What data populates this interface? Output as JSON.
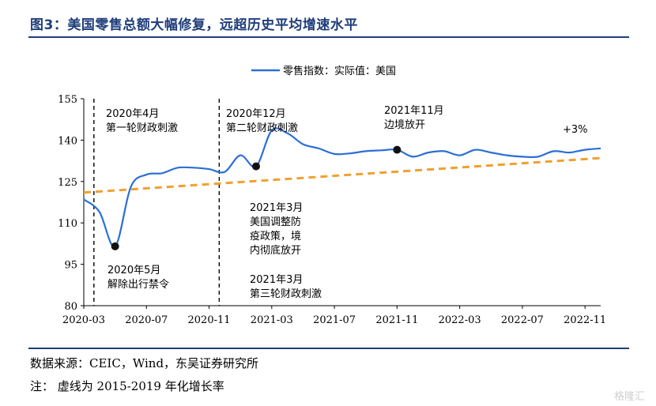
{
  "header": {
    "title": "图3：美国零售总额大幅修复，远超历史平均增速水平"
  },
  "footer": {
    "source": "数据来源：CEIC，Wind，东吴证券研究所",
    "note": "注：  虚线为 2015-2019 年化增长率"
  },
  "watermark": "格隆汇",
  "colors": {
    "line": "#2b6fd6",
    "trend": "#f0a030",
    "title": "#1f3d7a"
  },
  "chart_data": {
    "type": "line",
    "title": "",
    "xlabel": "",
    "ylabel": "",
    "ylim": [
      80,
      155
    ],
    "yticks": [
      80,
      95,
      110,
      125,
      140,
      155
    ],
    "xlim": [
      "2020-03",
      "2022-12"
    ],
    "xticks": [
      "2020-03",
      "2020-07",
      "2020-11",
      "2021-03",
      "2021-07",
      "2021-11",
      "2022-03",
      "2022-07",
      "2022-11"
    ],
    "legend": "top-center",
    "grid": false,
    "series": [
      {
        "name": "零售指数：实际值：美国",
        "x": [
          "2020-03",
          "2020-04",
          "2020-05",
          "2020-06",
          "2020-07",
          "2020-08",
          "2020-09",
          "2020-10",
          "2020-11",
          "2020-12",
          "2021-01",
          "2021-02",
          "2021-03",
          "2021-04",
          "2021-05",
          "2021-06",
          "2021-07",
          "2021-08",
          "2021-09",
          "2021-10",
          "2021-11",
          "2021-12",
          "2022-01",
          "2022-02",
          "2022-03",
          "2022-04",
          "2022-05",
          "2022-06",
          "2022-07",
          "2022-08",
          "2022-09",
          "2022-10",
          "2022-11",
          "2022-12"
        ],
        "values": [
          118.5,
          114,
          101.5,
          123,
          127.5,
          128,
          130,
          130,
          129.5,
          128.5,
          134.5,
          130.5,
          143.5,
          142.5,
          138.5,
          137,
          135,
          135.2,
          136,
          136.3,
          136.5,
          134,
          135.5,
          136,
          134.5,
          136.5,
          135.5,
          134.5,
          134,
          134,
          136,
          135.5,
          136.5,
          137
        ]
      },
      {
        "name": "2015-2019 年化增长率",
        "style": "dashed",
        "x": [
          "2020-03",
          "2022-12"
        ],
        "values": [
          121,
          133.5
        ]
      }
    ],
    "markers": [
      {
        "x": "2020-05",
        "y": 101.5
      },
      {
        "x": "2021-02",
        "y": 130.5
      },
      {
        "x": "2021-11",
        "y": 136.5
      }
    ],
    "vlines": [
      "2020-04",
      "2020-12"
    ],
    "annotations": [
      {
        "lines": [
          "2020年4月",
          "第一轮财政刺激"
        ]
      },
      {
        "lines": [
          "2020年5月",
          "解除出行禁令"
        ]
      },
      {
        "lines": [
          "2020年12月",
          "第二轮财政刺激"
        ]
      },
      {
        "lines": [
          "2021年3月",
          "美国调整防",
          "疫政策，境",
          "内彻底放开"
        ]
      },
      {
        "lines": [
          "2021年3月",
          "第三轮财政刺激"
        ]
      },
      {
        "lines": [
          "2021年11月",
          "边境放开"
        ]
      },
      {
        "lines": [
          "+3%"
        ]
      }
    ]
  }
}
